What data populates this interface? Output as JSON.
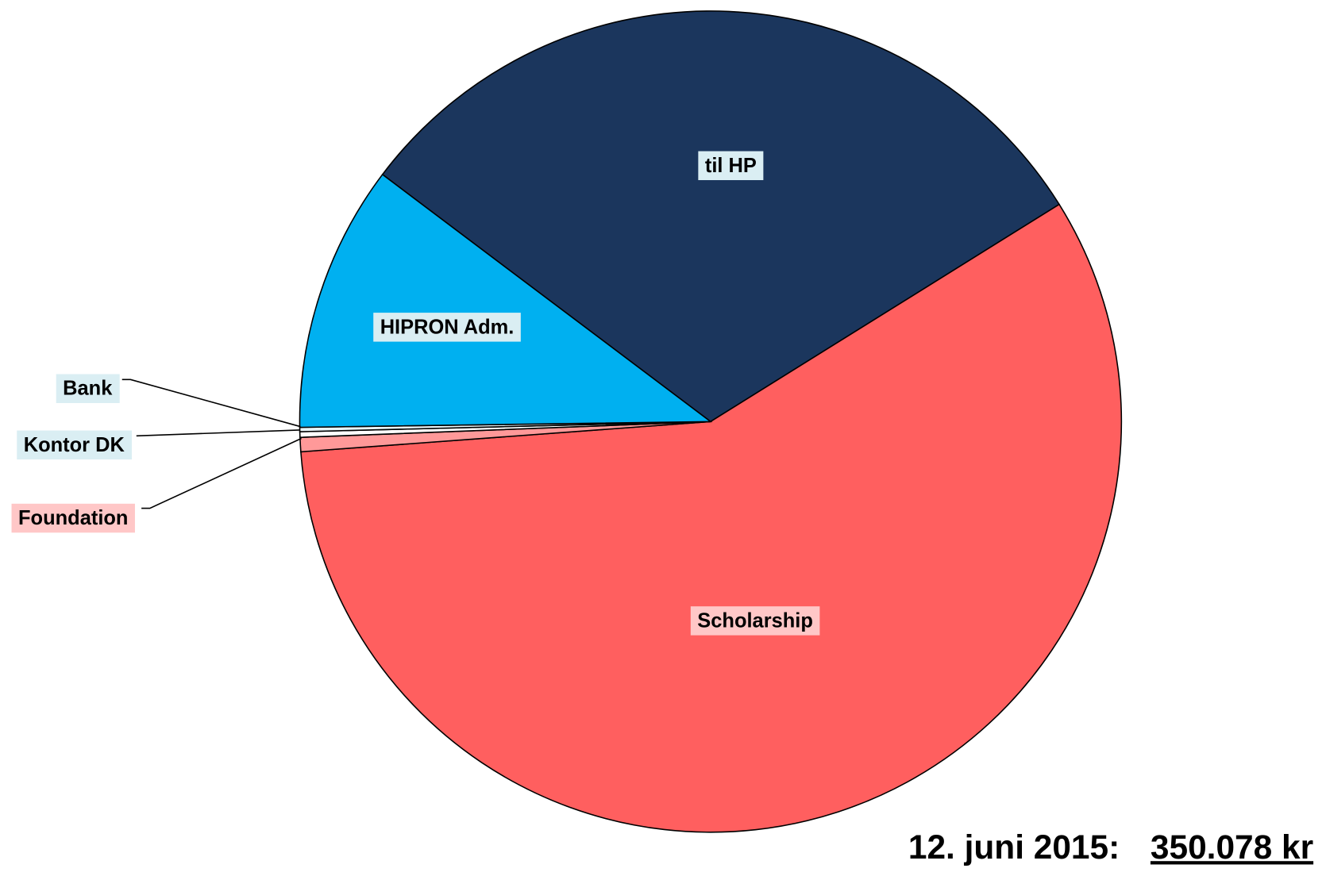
{
  "chart_data": {
    "type": "pie",
    "categories": [
      "til HP",
      "Scholarship",
      "Foundation",
      "Kontor DK",
      "Bank",
      "HIPRON Adm."
    ],
    "values": [
      30.85,
      57.7,
      0.56,
      0.22,
      0.17,
      10.5
    ],
    "colors": [
      "#1b365d",
      "#ff5f5f",
      "#ff9999",
      "#ffffff",
      "#e8f4f8",
      "#00b0f0"
    ],
    "label_backgrounds": [
      "#daeef3",
      "#ffc7c7",
      "#ffc7c7",
      "#daeef3",
      "#daeef3",
      "#daeef3"
    ],
    "annotation": {
      "date": "12. juni 2015:",
      "total": "350.078 kr"
    }
  }
}
